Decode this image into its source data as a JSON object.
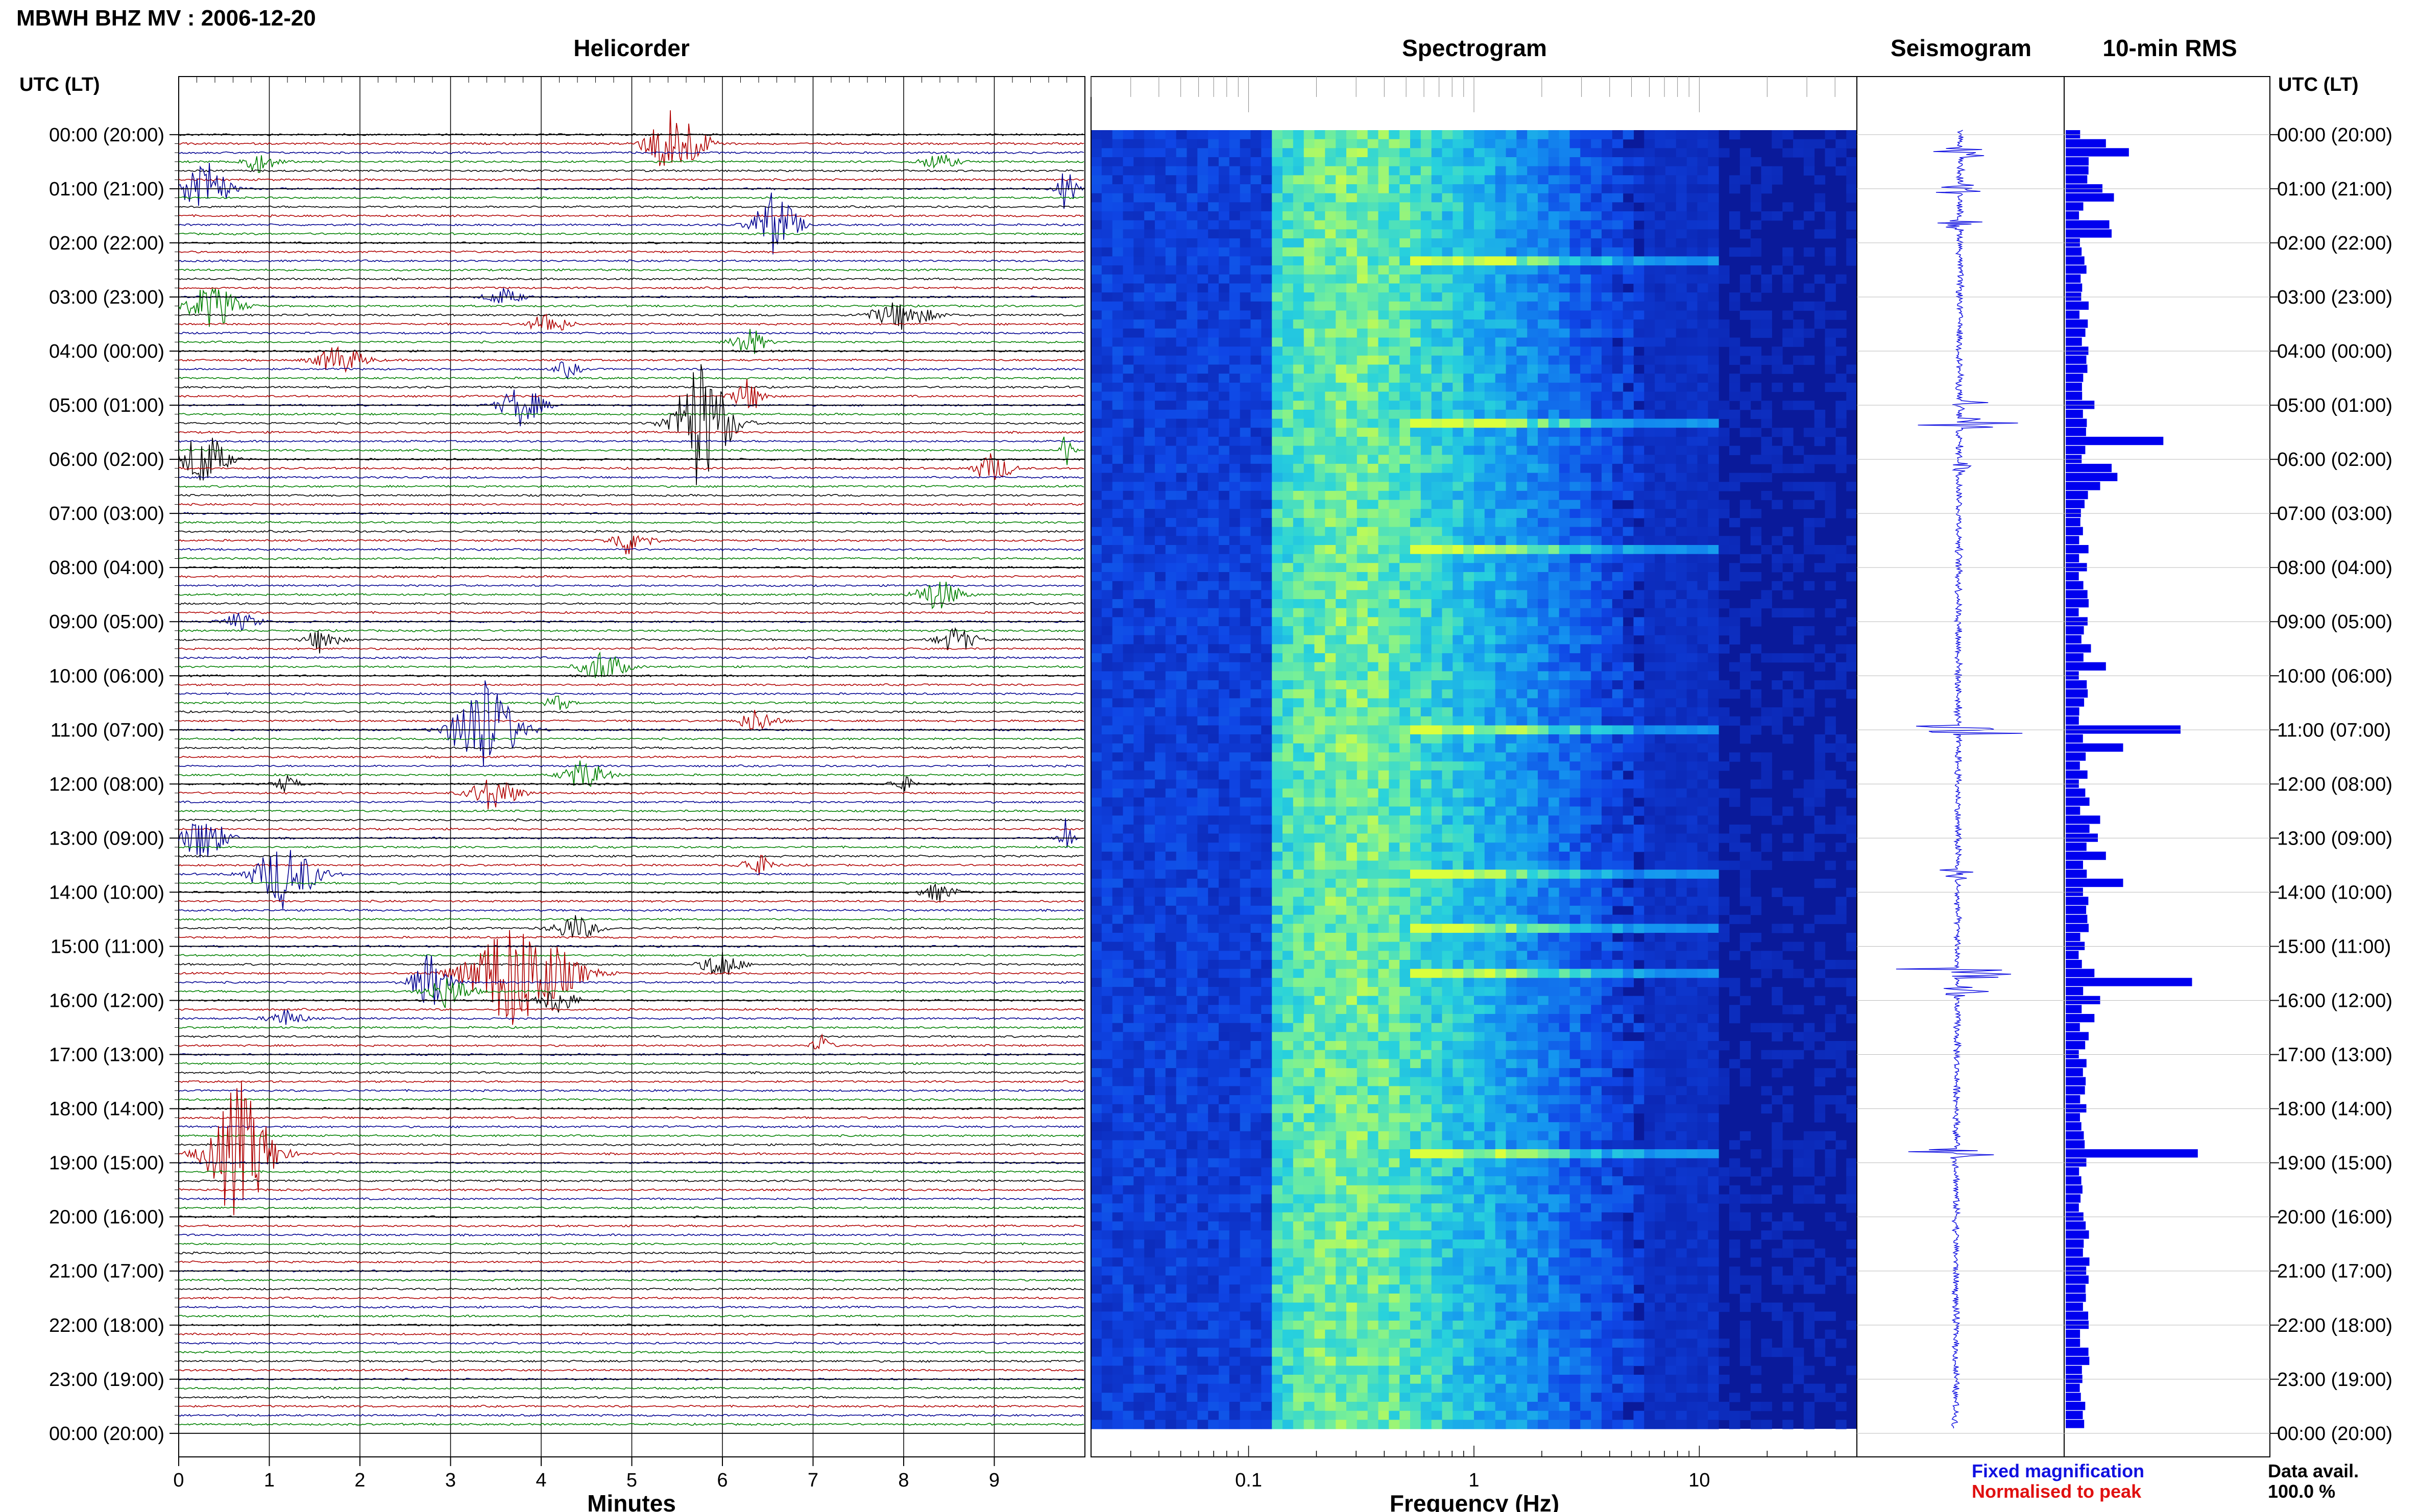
{
  "header": {
    "title": "MBWH BHZ MV : 2006-12-20"
  },
  "panels": {
    "helicorder": "Helicorder",
    "spectrogram": "Spectrogram",
    "seismogram": "Seismogram",
    "rms": "10-min RMS"
  },
  "axes": {
    "left_header": "UTC (LT)",
    "right_header": "UTC (LT)",
    "minutes_label": "Minutes",
    "frequency_label": "Frequency (Hz)"
  },
  "legend": {
    "fixed": "Fixed magnification",
    "normalised": "Normalised to peak",
    "fixed_color": "#1010e0",
    "normalised_color": "#e01010"
  },
  "availability": {
    "label": "Data avail.",
    "value": "100.0 %"
  },
  "colors": {
    "trace_cycle": [
      "#000000",
      "#b00000",
      "#000090",
      "#008000"
    ],
    "rms_bar": "#0000ee",
    "spec_low": "#0a1a9a",
    "spec_high": "#c8ff40"
  },
  "chart_data": [
    {
      "type": "line",
      "name": "helicorder",
      "title": "Helicorder",
      "xlabel": "Minutes",
      "x_ticks": [
        "0",
        "1",
        "2",
        "3",
        "4",
        "5",
        "6",
        "7",
        "8",
        "9"
      ],
      "xlim": [
        0,
        10
      ],
      "rows_per_hour": 6,
      "hours": 24,
      "time_labels": [
        "00:00 (20:00)",
        "01:00 (21:00)",
        "02:00 (22:00)",
        "03:00 (23:00)",
        "04:00 (00:00)",
        "05:00 (01:00)",
        "06:00 (02:00)",
        "07:00 (03:00)",
        "08:00 (04:00)",
        "09:00 (05:00)",
        "10:00 (06:00)",
        "11:00 (07:00)",
        "12:00 (08:00)",
        "13:00 (09:00)",
        "14:00 (10:00)",
        "15:00 (11:00)",
        "16:00 (12:00)",
        "17:00 (13:00)",
        "18:00 (14:00)",
        "19:00 (15:00)",
        "20:00 (16:00)",
        "21:00 (17:00)",
        "22:00 (18:00)",
        "23:00 (19:00)",
        "00:00 (20:00)"
      ],
      "events": [
        {
          "row": 1,
          "minute": 5.5,
          "amp": 2.2,
          "width": 0.45
        },
        {
          "row": 3,
          "minute": 0.9,
          "amp": 0.6,
          "width": 0.3
        },
        {
          "row": 3,
          "minute": 8.4,
          "amp": 0.5,
          "width": 0.3
        },
        {
          "row": 6,
          "minute": 0.3,
          "amp": 2.0,
          "width": 0.35
        },
        {
          "row": 6,
          "minute": 9.8,
          "amp": 1.2,
          "width": 0.15
        },
        {
          "row": 10,
          "minute": 6.6,
          "amp": 2.0,
          "width": 0.35
        },
        {
          "row": 18,
          "minute": 3.6,
          "amp": 0.5,
          "width": 0.3
        },
        {
          "row": 19,
          "minute": 0.4,
          "amp": 1.4,
          "width": 0.4
        },
        {
          "row": 20,
          "minute": 8.0,
          "amp": 0.8,
          "width": 0.5
        },
        {
          "row": 21,
          "minute": 4.1,
          "amp": 0.7,
          "width": 0.3
        },
        {
          "row": 23,
          "minute": 6.3,
          "amp": 1.0,
          "width": 0.25
        },
        {
          "row": 25,
          "minute": 1.8,
          "amp": 0.9,
          "width": 0.4
        },
        {
          "row": 26,
          "minute": 4.3,
          "amp": 0.5,
          "width": 0.2
        },
        {
          "row": 29,
          "minute": 6.3,
          "amp": 1.0,
          "width": 0.25
        },
        {
          "row": 30,
          "minute": 3.8,
          "amp": 1.2,
          "width": 0.35
        },
        {
          "row": 32,
          "minute": 5.8,
          "amp": 4.0,
          "width": 0.45
        },
        {
          "row": 35,
          "minute": 9.8,
          "amp": 1.1,
          "width": 0.1
        },
        {
          "row": 36,
          "minute": 0.3,
          "amp": 1.8,
          "width": 0.35
        },
        {
          "row": 37,
          "minute": 9.0,
          "amp": 0.9,
          "width": 0.3
        },
        {
          "row": 45,
          "minute": 5.0,
          "amp": 0.9,
          "width": 0.3
        },
        {
          "row": 51,
          "minute": 8.4,
          "amp": 1.0,
          "width": 0.35
        },
        {
          "row": 54,
          "minute": 0.7,
          "amp": 0.5,
          "width": 0.3
        },
        {
          "row": 56,
          "minute": 1.6,
          "amp": 0.8,
          "width": 0.25
        },
        {
          "row": 56,
          "minute": 8.6,
          "amp": 0.8,
          "width": 0.3
        },
        {
          "row": 59,
          "minute": 4.7,
          "amp": 1.0,
          "width": 0.35
        },
        {
          "row": 63,
          "minute": 4.2,
          "amp": 0.5,
          "width": 0.2
        },
        {
          "row": 66,
          "minute": 3.4,
          "amp": 3.2,
          "width": 0.5
        },
        {
          "row": 65,
          "minute": 6.4,
          "amp": 0.7,
          "width": 0.3
        },
        {
          "row": 71,
          "minute": 4.5,
          "amp": 0.9,
          "width": 0.35
        },
        {
          "row": 73,
          "minute": 3.5,
          "amp": 1.0,
          "width": 0.4
        },
        {
          "row": 72,
          "minute": 1.2,
          "amp": 0.5,
          "width": 0.2
        },
        {
          "row": 72,
          "minute": 8.0,
          "amp": 0.5,
          "width": 0.2
        },
        {
          "row": 78,
          "minute": 0.3,
          "amp": 1.5,
          "width": 0.35
        },
        {
          "row": 78,
          "minute": 9.8,
          "amp": 1.3,
          "width": 0.12
        },
        {
          "row": 81,
          "minute": 6.4,
          "amp": 0.7,
          "width": 0.25
        },
        {
          "row": 82,
          "minute": 1.2,
          "amp": 2.0,
          "width": 0.5
        },
        {
          "row": 84,
          "minute": 8.4,
          "amp": 0.5,
          "width": 0.3
        },
        {
          "row": 88,
          "minute": 4.4,
          "amp": 0.8,
          "width": 0.35
        },
        {
          "row": 92,
          "minute": 6.0,
          "amp": 0.9,
          "width": 0.3
        },
        {
          "row": 93,
          "minute": 3.8,
          "amp": 3.5,
          "width": 0.8
        },
        {
          "row": 94,
          "minute": 2.8,
          "amp": 1.8,
          "width": 0.3
        },
        {
          "row": 95,
          "minute": 3.0,
          "amp": 1.0,
          "width": 0.35
        },
        {
          "row": 96,
          "minute": 4.2,
          "amp": 0.8,
          "width": 0.3
        },
        {
          "row": 98,
          "minute": 1.2,
          "amp": 0.5,
          "width": 0.3
        },
        {
          "row": 101,
          "minute": 7.1,
          "amp": 0.6,
          "width": 0.15
        },
        {
          "row": 113,
          "minute": 0.7,
          "amp": 4.2,
          "width": 0.5
        }
      ]
    },
    {
      "type": "heatmap",
      "name": "spectrogram",
      "title": "Spectrogram",
      "xlabel": "Frequency (Hz)",
      "x_scale": "log",
      "xlim": [
        0.02,
        50
      ],
      "x_ticks": [
        0.1,
        1,
        10
      ],
      "x_tick_labels": [
        "0.1",
        "1",
        "10"
      ],
      "peak_frequency_hz": 0.25,
      "strong_band_hz": [
        0.13,
        2.5
      ],
      "strong_rows": [
        14,
        32,
        46,
        66,
        82,
        88,
        93,
        113
      ]
    },
    {
      "type": "line",
      "name": "seismogram",
      "title": "Seismogram",
      "events": [
        {
          "row": 2,
          "amp": 0.6
        },
        {
          "row": 6,
          "amp": 0.35
        },
        {
          "row": 10,
          "amp": 0.3
        },
        {
          "row": 32,
          "amp": 0.9
        },
        {
          "row": 30,
          "amp": 0.4
        },
        {
          "row": 37,
          "amp": 0.35
        },
        {
          "row": 66,
          "amp": 1.0
        },
        {
          "row": 82,
          "amp": 0.3
        },
        {
          "row": 93,
          "amp": 1.1
        },
        {
          "row": 95,
          "amp": 0.5
        },
        {
          "row": 113,
          "amp": 1.2
        }
      ]
    },
    {
      "type": "bar",
      "name": "rms",
      "title": "10-min RMS",
      "orientation": "horizontal",
      "rows": 144,
      "baseline": 0.16,
      "peaks": [
        {
          "row": 1,
          "value": 0.35
        },
        {
          "row": 2,
          "value": 0.55
        },
        {
          "row": 3,
          "value": 0.2
        },
        {
          "row": 6,
          "value": 0.32
        },
        {
          "row": 7,
          "value": 0.42
        },
        {
          "row": 10,
          "value": 0.38
        },
        {
          "row": 11,
          "value": 0.4
        },
        {
          "row": 19,
          "value": 0.2
        },
        {
          "row": 20,
          "value": 0.12
        },
        {
          "row": 25,
          "value": 0.18
        },
        {
          "row": 30,
          "value": 0.25
        },
        {
          "row": 31,
          "value": 0.15
        },
        {
          "row": 34,
          "value": 0.85
        },
        {
          "row": 37,
          "value": 0.4
        },
        {
          "row": 38,
          "value": 0.45
        },
        {
          "row": 39,
          "value": 0.3
        },
        {
          "row": 52,
          "value": 0.2
        },
        {
          "row": 57,
          "value": 0.22
        },
        {
          "row": 59,
          "value": 0.35
        },
        {
          "row": 66,
          "value": 1.0
        },
        {
          "row": 68,
          "value": 0.5
        },
        {
          "row": 76,
          "value": 0.3
        },
        {
          "row": 78,
          "value": 0.28
        },
        {
          "row": 80,
          "value": 0.35
        },
        {
          "row": 83,
          "value": 0.5
        },
        {
          "row": 88,
          "value": 0.2
        },
        {
          "row": 93,
          "value": 0.25
        },
        {
          "row": 94,
          "value": 1.1
        },
        {
          "row": 96,
          "value": 0.3
        },
        {
          "row": 98,
          "value": 0.25
        },
        {
          "row": 100,
          "value": 0.2
        },
        {
          "row": 113,
          "value": 1.15
        },
        {
          "row": 114,
          "value": 0.18
        }
      ]
    }
  ]
}
